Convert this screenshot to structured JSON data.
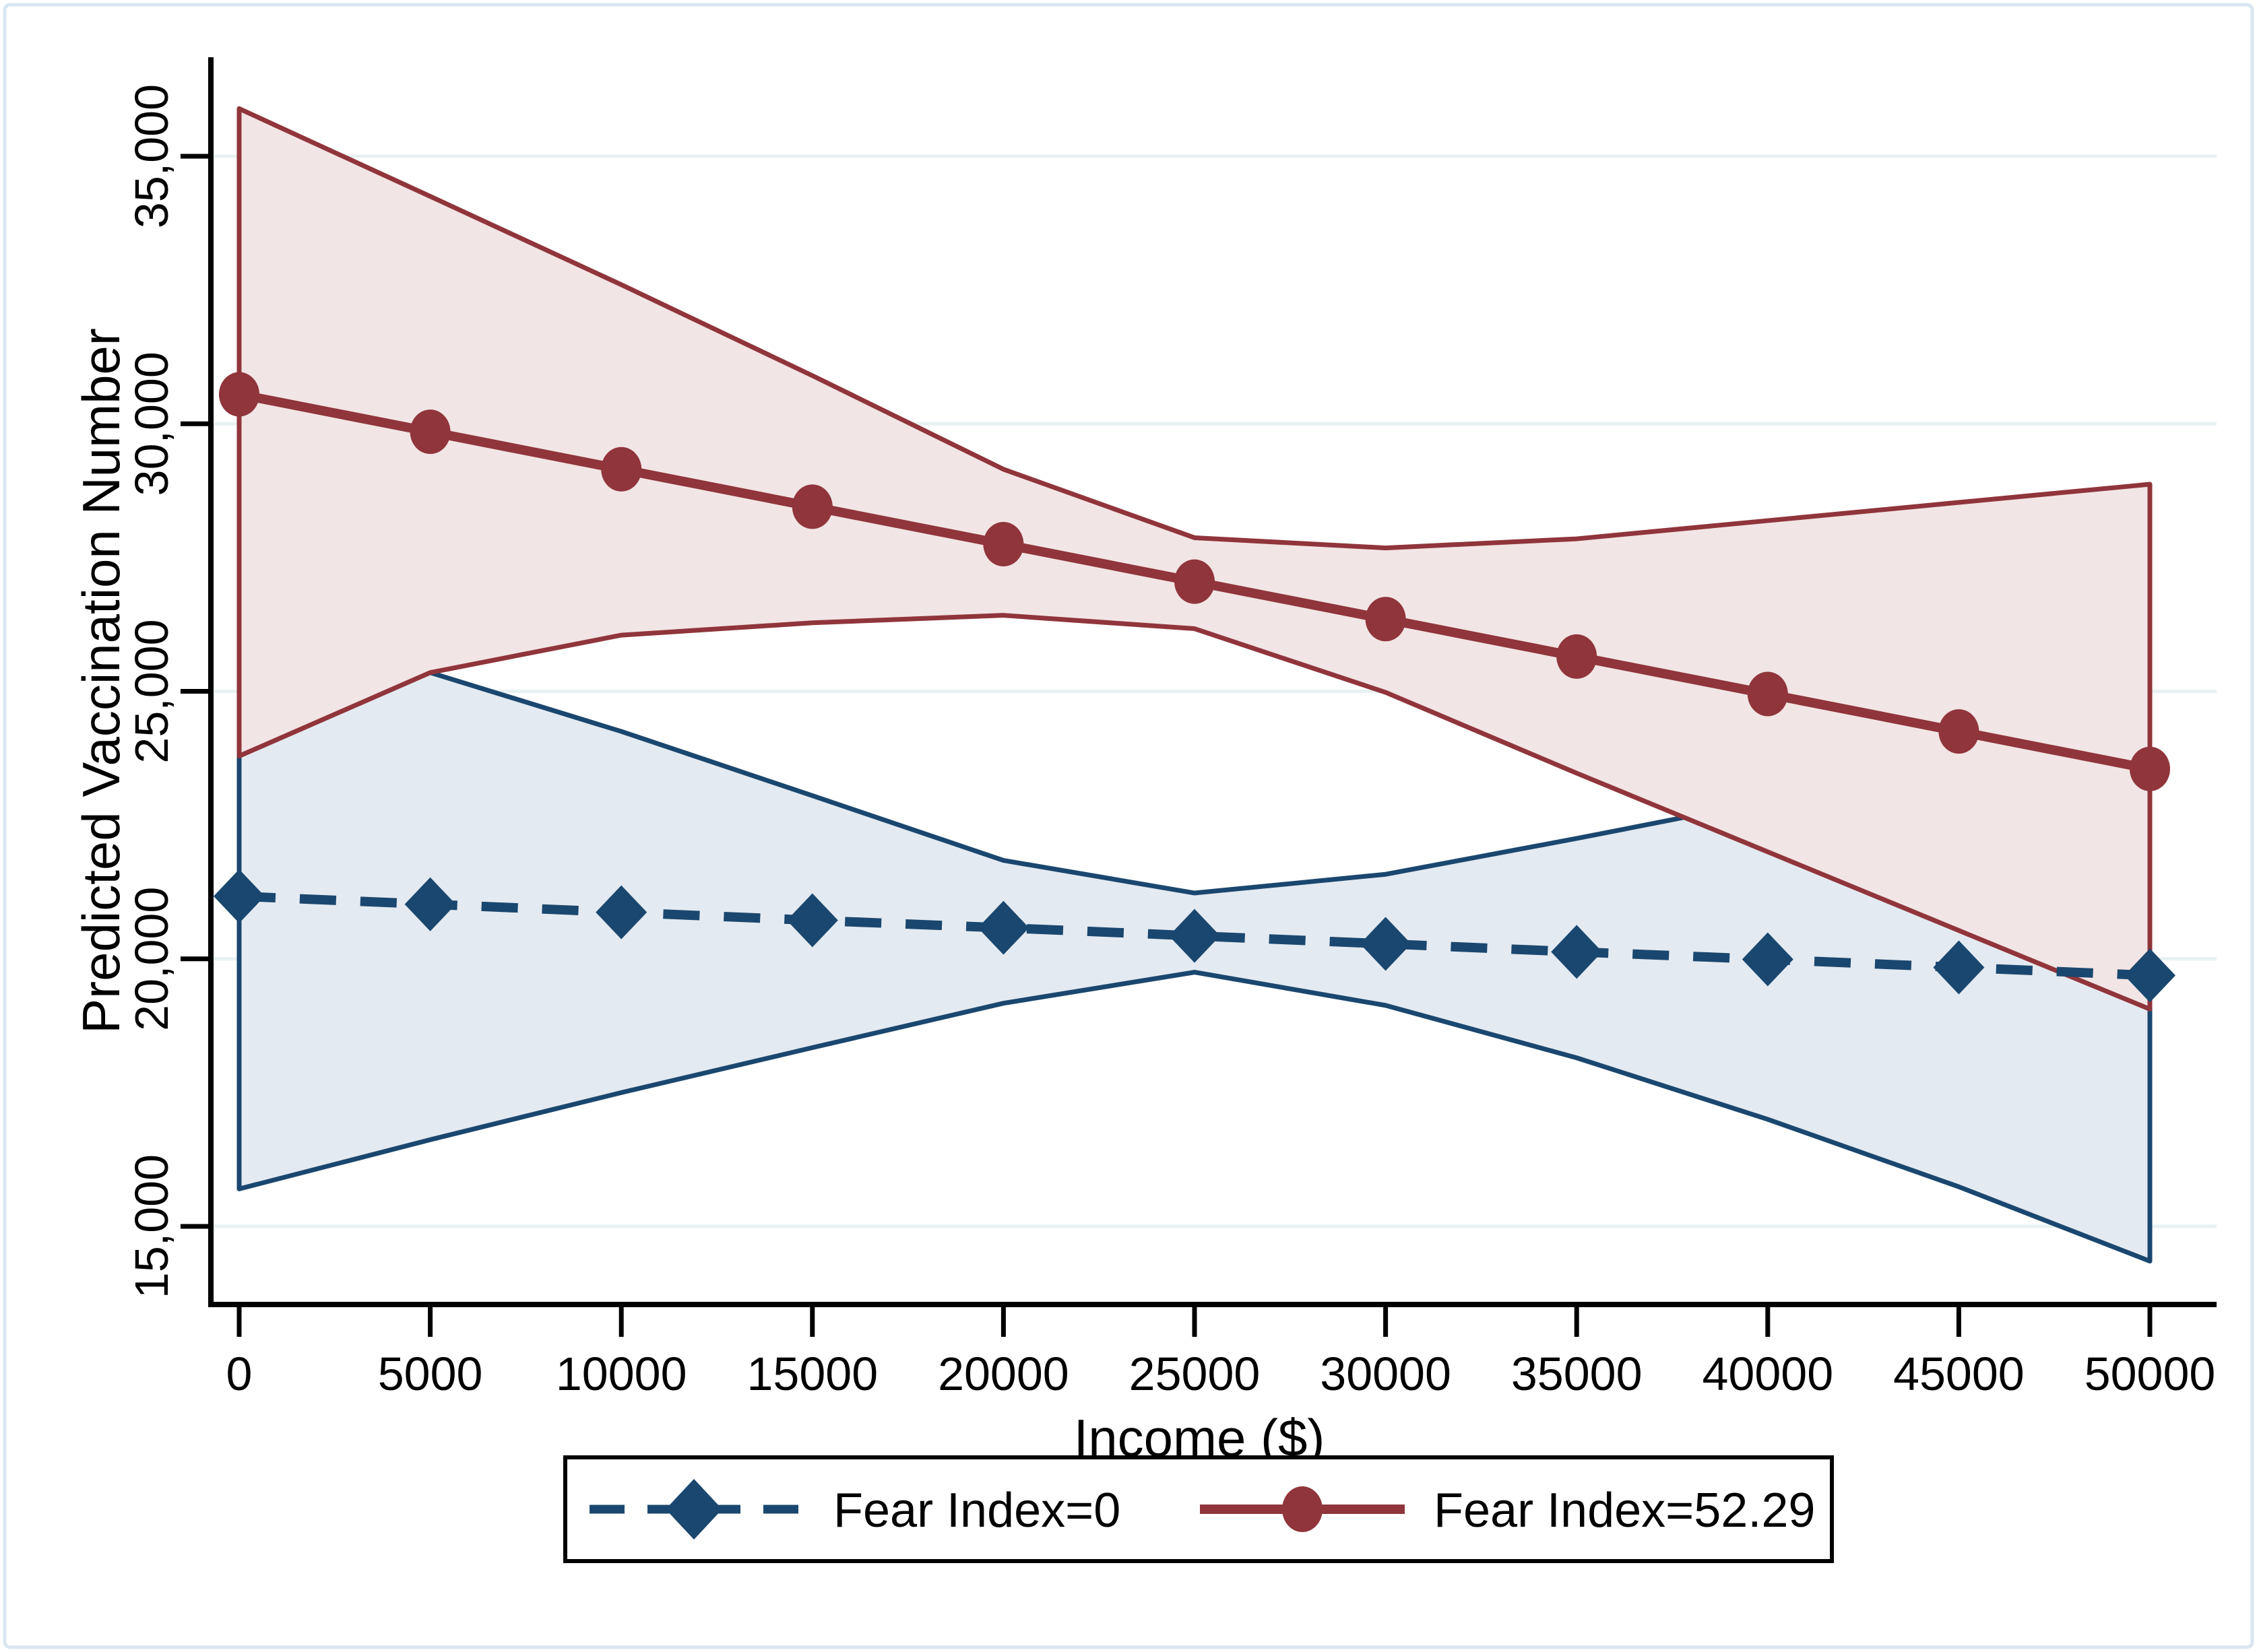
{
  "chart_data": {
    "type": "line",
    "title": "",
    "xlabel": "Income ($)",
    "ylabel": "Predicted Vaccination Number",
    "xlim": [
      0,
      50000
    ],
    "ylim": [
      13500,
      36850
    ],
    "grid": true,
    "legend_position": "bottom",
    "x": [
      0,
      5000,
      10000,
      15000,
      20000,
      25000,
      30000,
      35000,
      40000,
      45000,
      50000
    ],
    "xtick_labels": [
      "0",
      "5000",
      "10000",
      "15000",
      "20000",
      "25000",
      "30000",
      "35000",
      "40000",
      "45000",
      "50000"
    ],
    "ytick_values": [
      15000,
      20000,
      25000,
      30000,
      35000
    ],
    "ytick_labels": [
      "15,000",
      "20,000",
      "25,000",
      "30,000",
      "35,000"
    ],
    "series": [
      {
        "name": "Fear Index=0",
        "marker": "diamond",
        "line_style": "dashed",
        "color": "#1A476F",
        "band_fill": "#E4EAF1",
        "values": [
          21170,
          21020,
          20870,
          20720,
          20580,
          20430,
          20280,
          20130,
          19990,
          19840,
          19690
        ],
        "ci_upper": [
          26500,
          25350,
          24250,
          23050,
          21840,
          21230,
          21580,
          22250,
          22950,
          23650,
          24350
        ],
        "ci_lower": [
          15700,
          16620,
          17500,
          18340,
          19170,
          19750,
          19130,
          18150,
          17000,
          15740,
          14350
        ]
      },
      {
        "name": "Fear Index=52.29",
        "marker": "circle",
        "line_style": "solid",
        "color": "#90353B",
        "band_fill": "#F2E5E5",
        "values": [
          30550,
          29850,
          29150,
          28450,
          27750,
          27050,
          26350,
          25650,
          24950,
          24250,
          23550
        ],
        "ci_upper": [
          35890,
          34250,
          32600,
          30900,
          29150,
          27870,
          27680,
          27850,
          28190,
          28530,
          28870
        ],
        "ci_lower": [
          23790,
          25350,
          26050,
          26280,
          26420,
          26170,
          24980,
          23470,
          22000,
          20530,
          19060
        ]
      }
    ],
    "colors": {
      "navy": "#1A476F",
      "maroon": "#90353B",
      "navy_band_fill": "#E4EAF1",
      "maroon_band_fill": "#F2E5E5",
      "gridline": "#E8F1F2",
      "axis": "#000000",
      "figure_border": "#D9E6F2",
      "background": "#FFFFFF"
    }
  }
}
